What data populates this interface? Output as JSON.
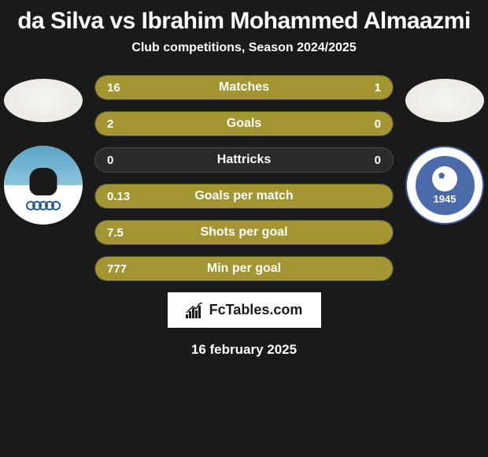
{
  "title": "da Silva vs Ibrahim Mohammed Almaazmi",
  "subtitle": "Club competitions, Season 2024/2025",
  "footer_brand": "FcTables.com",
  "footer_date": "16 february 2025",
  "colors": {
    "background": "#1a1a1a",
    "bar_fill": "#a39531",
    "bar_empty": "#2a2a2a",
    "text": "#ffffff",
    "logo_bg": "#ffffff",
    "logo_text": "#1a1a1a"
  },
  "player1": {
    "club_year": ""
  },
  "player2": {
    "club_year": "1945"
  },
  "stats": [
    {
      "label": "Matches",
      "left_val": "16",
      "right_val": "1",
      "left_pct": 70,
      "right_pct": 30,
      "left_color": "#a39531",
      "right_color": "#a39531"
    },
    {
      "label": "Goals",
      "left_val": "2",
      "right_val": "0",
      "left_pct": 100,
      "right_pct": 0,
      "left_color": "#a39531",
      "right_color": "#a39531"
    },
    {
      "label": "Hattricks",
      "left_val": "0",
      "right_val": "0",
      "left_pct": 0,
      "right_pct": 0,
      "left_color": "#a39531",
      "right_color": "#a39531"
    },
    {
      "label": "Goals per match",
      "left_val": "0.13",
      "right_val": "",
      "left_pct": 100,
      "right_pct": 0,
      "left_color": "#a39531",
      "right_color": "#a39531"
    },
    {
      "label": "Shots per goal",
      "left_val": "7.5",
      "right_val": "",
      "left_pct": 100,
      "right_pct": 0,
      "left_color": "#a39531",
      "right_color": "#a39531"
    },
    {
      "label": "Min per goal",
      "left_val": "777",
      "right_val": "",
      "left_pct": 100,
      "right_pct": 0,
      "left_color": "#a39531",
      "right_color": "#a39531"
    }
  ]
}
